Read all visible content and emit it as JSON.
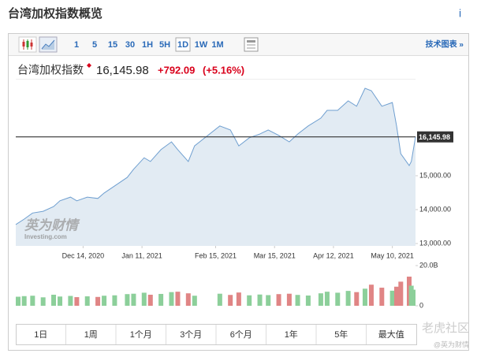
{
  "header": {
    "title": "台湾加权指数概览",
    "info": "i"
  },
  "toolbar": {
    "intervals": [
      "1",
      "5",
      "15",
      "30",
      "1H",
      "5H",
      "1D",
      "1W",
      "1M"
    ],
    "selected": "1D",
    "link": "技术图表 »"
  },
  "quote": {
    "name": "台湾加权指数",
    "price": "16,145.98",
    "change": "+792.09",
    "change_percent": "(+5.16%)"
  },
  "chart_data": [
    {
      "type": "area",
      "color": "#6f9fd0",
      "fill": "#dfe9f2",
      "x": [
        "2020-11-12",
        "2020-11-16",
        "2020-11-20",
        "2020-11-25",
        "2020-11-30",
        "2020-12-03",
        "2020-12-08",
        "2020-12-11",
        "2020-12-16",
        "2020-12-21",
        "2020-12-24",
        "2020-12-29",
        "2021-01-04",
        "2021-01-07",
        "2021-01-12",
        "2021-01-15",
        "2021-01-20",
        "2021-01-25",
        "2021-01-28",
        "2021-02-02",
        "2021-02-05",
        "2021-02-17",
        "2021-02-22",
        "2021-02-26",
        "2021-03-03",
        "2021-03-08",
        "2021-03-12",
        "2021-03-17",
        "2021-03-22",
        "2021-03-26",
        "2021-03-31",
        "2021-04-06",
        "2021-04-09",
        "2021-04-14",
        "2021-04-19",
        "2021-04-23",
        "2021-04-27",
        "2021-04-30",
        "2021-05-05",
        "2021-05-10",
        "2021-05-12",
        "2021-05-14",
        "2021-05-18",
        "2021-05-19",
        "2021-05-21"
      ],
      "values": [
        13560,
        13720,
        13900,
        13950,
        14090,
        14260,
        14370,
        14260,
        14370,
        14330,
        14490,
        14700,
        14950,
        15190,
        15530,
        15420,
        15770,
        16000,
        15770,
        15420,
        15880,
        16470,
        16350,
        15880,
        16120,
        16230,
        16350,
        16190,
        16000,
        16230,
        16470,
        16700,
        16930,
        16930,
        17210,
        17050,
        17580,
        17510,
        17050,
        17160,
        16470,
        15650,
        15300,
        15420,
        16145.98
      ],
      "xlim": [
        "2020-11-12",
        "2021-05-21"
      ],
      "xticks": [
        {
          "value": "2020-12-14",
          "label": "Dec 14, 2020"
        },
        {
          "value": "2021-01-11",
          "label": "Jan 11, 2021"
        },
        {
          "value": "2021-02-15",
          "label": "Feb 15, 2021"
        },
        {
          "value": "2021-03-15",
          "label": "Mar 15, 2021"
        },
        {
          "value": "2021-04-12",
          "label": "Apr 12, 2021"
        },
        {
          "value": "2021-05-10",
          "label": "May 10, 2021"
        }
      ],
      "ylim": [
        12930,
        17860
      ],
      "yticks": [
        {
          "value": 13000,
          "label": "13,000.00"
        },
        {
          "value": 14000,
          "label": "14,000.00"
        },
        {
          "value": 15000,
          "label": "15,000.00"
        }
      ],
      "current_line": {
        "value": 16145.98,
        "label": "16,145.98"
      }
    },
    {
      "type": "bar",
      "up_color": "#8ccf9a",
      "down_color": "#e08585",
      "values": [
        4.5,
        4.8,
        5.0,
        4.2,
        5.5,
        4.6,
        4.9,
        4.3,
        4.7,
        4.4,
        5.0,
        5.2,
        5.8,
        6.0,
        6.5,
        5.5,
        5.9,
        6.8,
        7.0,
        6.2,
        5.0,
        6.0,
        5.4,
        6.6,
        5.2,
        5.6,
        5.3,
        5.8,
        6.0,
        5.4,
        5.1,
        6.2,
        7.0,
        6.5,
        7.4,
        6.8,
        8.5,
        10.5,
        9.0,
        7.5,
        9.5,
        12.0,
        14.5,
        10.0,
        8.0
      ],
      "ylim": [
        0,
        20
      ],
      "yticks": [
        0,
        {
          "value": 20,
          "label": "20.0B"
        }
      ]
    }
  ],
  "watermark": {
    "brand": "英为财情",
    "site": "Investing.com"
  },
  "ranges": [
    "1日",
    "1周",
    "1个月",
    "3个月",
    "6个月",
    "1年",
    "5年",
    "最大值"
  ],
  "footer": {
    "community": "老虎社区",
    "author": "@英为财情"
  }
}
